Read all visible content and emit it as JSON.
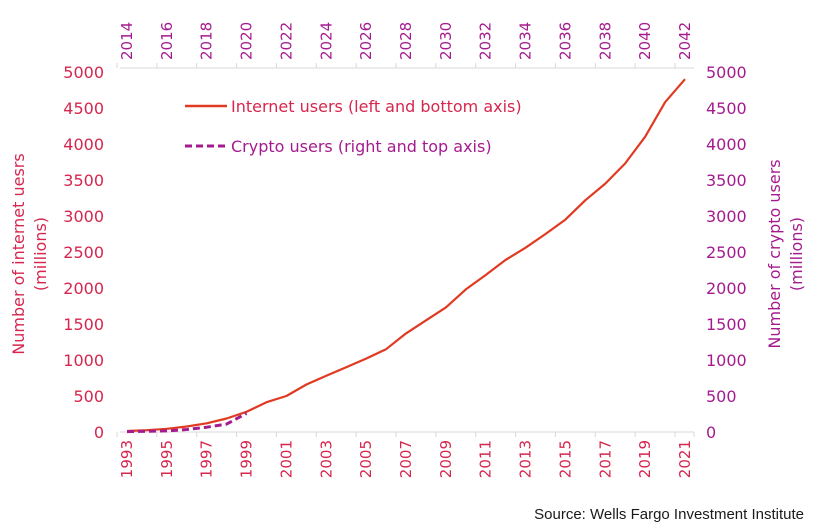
{
  "chart_data": {
    "type": "line",
    "title": "",
    "source": "Source: Wells Fargo Investment Institute",
    "axes": {
      "left": {
        "label_line1": "Number of internet uesrs",
        "label_line2": "(millions)",
        "ylim": [
          0,
          5000
        ],
        "ticks": [
          "0",
          "500",
          "1000",
          "1500",
          "2000",
          "2500",
          "3000",
          "3500",
          "4000",
          "4500",
          "5000"
        ],
        "color": "#d6264e"
      },
      "right": {
        "label_line1": "Number of crypto users",
        "label_line2": "(millions)",
        "ylim": [
          0,
          5000
        ],
        "ticks": [
          "0",
          "500",
          "1000",
          "1500",
          "2000",
          "2500",
          "3000",
          "3500",
          "4000",
          "4500",
          "5000"
        ],
        "color": "#a51b8f"
      },
      "bottom": {
        "xlim": [
          1993,
          2021
        ],
        "ticks": [
          "1993",
          "1995",
          "1997",
          "1999",
          "2001",
          "2003",
          "2005",
          "2007",
          "2009",
          "2011",
          "2013",
          "2015",
          "2017",
          "2019",
          "2021"
        ],
        "color": "#d6264e"
      },
      "top": {
        "xlim": [
          2014,
          2042
        ],
        "ticks": [
          "2014",
          "2016",
          "2018",
          "2020",
          "2022",
          "2024",
          "2026",
          "2028",
          "2030",
          "2032",
          "2034",
          "2036",
          "2038",
          "2040",
          "2042"
        ],
        "color": "#a51b8f"
      }
    },
    "legend": {
      "position": "top-left",
      "entries": [
        {
          "label": "Internet users (left and bottom axis)",
          "style": "solid",
          "color": "#e03a22"
        },
        {
          "label": "Crypto users (right and top axis)",
          "style": "dashed",
          "color": "#a51b8f"
        }
      ]
    },
    "series": [
      {
        "name": "Internet users",
        "axis": "left-bottom",
        "color": "#e03a22",
        "style": "solid",
        "x": [
          1993,
          1994,
          1995,
          1996,
          1997,
          1998,
          1999,
          2000,
          2001,
          2002,
          2003,
          2004,
          2005,
          2006,
          2007,
          2008,
          2009,
          2010,
          2011,
          2012,
          2013,
          2014,
          2015,
          2016,
          2017,
          2018,
          2019,
          2020,
          2021
        ],
        "values": [
          14,
          25,
          45,
          77,
          121,
          188,
          281,
          414,
          500,
          660,
          780,
          900,
          1020,
          1150,
          1370,
          1550,
          1730,
          1980,
          2180,
          2390,
          2560,
          2750,
          2950,
          3220,
          3450,
          3730,
          4100,
          4580,
          4900
        ]
      },
      {
        "name": "Crypto users",
        "axis": "right-top",
        "color": "#a51b8f",
        "style": "dashed",
        "x": [
          2014,
          2015,
          2016,
          2017,
          2018,
          2019,
          2020
        ],
        "values": [
          5,
          10,
          15,
          35,
          66,
          110,
          260
        ]
      }
    ],
    "grid": false
  }
}
